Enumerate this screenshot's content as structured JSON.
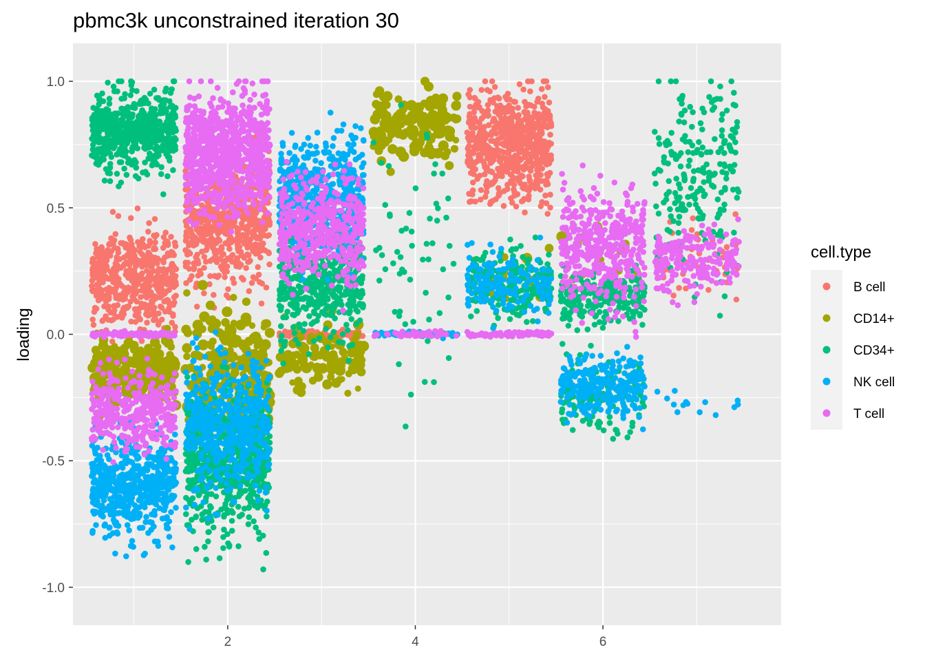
{
  "chart_data": {
    "type": "scatter",
    "title": "pbmc3k unconstrained iteration 30",
    "xlabel": "",
    "ylabel": "loading",
    "xlim": [
      0.35,
      7.9
    ],
    "ylim": [
      -1.15,
      1.15
    ],
    "x_ticks": [
      2,
      4,
      6
    ],
    "x_tick_labels": [
      "2",
      "4",
      "6"
    ],
    "x_minor_ticks": [
      1,
      3,
      5,
      7
    ],
    "y_ticks": [
      -1.0,
      -0.5,
      0.0,
      0.5,
      1.0
    ],
    "y_tick_labels": [
      "-1.0",
      "-0.5",
      "0.0",
      "0.5",
      "1.0"
    ],
    "grid": true,
    "legend": {
      "title": "cell.type",
      "position": "right",
      "entries": [
        "B cell",
        "CD14+",
        "CD34+",
        "NK cell",
        "T cell"
      ]
    },
    "colors": {
      "B cell": "#F8766D",
      "CD14+": "#A3A500",
      "CD34+": "#00BF7D",
      "NK cell": "#00B0F6",
      "T cell": "#E76BF3"
    },
    "jitter_width": 0.45,
    "series": [
      {
        "name": "B cell",
        "clusters": [
          {
            "x": 1,
            "y_center": 0.22,
            "y_spread": 0.1,
            "n": 500
          },
          {
            "x": 2,
            "y_center": 0.45,
            "y_spread": 0.12,
            "n": 700
          },
          {
            "x": 3,
            "y_center": 0.0,
            "y_spread": 0.01,
            "n": 80
          },
          {
            "x": 5,
            "y_center": 0.75,
            "y_spread": 0.11,
            "n": 650
          },
          {
            "x": 7,
            "y_center": 0.3,
            "y_spread": 0.07,
            "n": 50
          }
        ]
      },
      {
        "name": "CD14+",
        "clusters": [
          {
            "x": 1,
            "y_center": -0.15,
            "y_spread": 0.06,
            "n": 260
          },
          {
            "x": 2,
            "y_center": -0.15,
            "y_spread": 0.12,
            "n": 250
          },
          {
            "x": 3,
            "y_center": -0.1,
            "y_spread": 0.07,
            "n": 110
          },
          {
            "x": 4,
            "y_center": 0.83,
            "y_spread": 0.07,
            "n": 160
          },
          {
            "x": 5,
            "y_center": 0.25,
            "y_spread": 0.06,
            "n": 20
          },
          {
            "x": 6,
            "y_center": 0.32,
            "y_spread": 0.05,
            "n": 15
          }
        ]
      },
      {
        "name": "CD34+",
        "clusters": [
          {
            "x": 1,
            "y_center": 0.8,
            "y_spread": 0.08,
            "n": 550
          },
          {
            "x": 2,
            "y_center": -0.5,
            "y_spread": 0.13,
            "n": 650
          },
          {
            "x": 3,
            "y_center": 0.2,
            "y_spread": 0.1,
            "n": 450
          },
          {
            "x": 4,
            "y_center": 0.3,
            "y_spread": 0.25,
            "n": 60
          },
          {
            "x": 5,
            "y_center": 0.2,
            "y_spread": 0.06,
            "n": 250
          },
          {
            "x": 6,
            "y_center": 0.15,
            "y_spread": 0.05,
            "n": 250
          },
          {
            "x": 6,
            "y_center": -0.25,
            "y_spread": 0.08,
            "n": 120
          },
          {
            "x": 7,
            "y_center": 0.65,
            "y_spread": 0.2,
            "n": 220
          }
        ]
      },
      {
        "name": "NK cell",
        "clusters": [
          {
            "x": 1,
            "y_center": -0.6,
            "y_spread": 0.1,
            "n": 550
          },
          {
            "x": 2,
            "y_center": -0.35,
            "y_spread": 0.13,
            "n": 500
          },
          {
            "x": 3,
            "y_center": 0.55,
            "y_spread": 0.11,
            "n": 550
          },
          {
            "x": 4,
            "y_center": 0.0,
            "y_spread": 0.005,
            "n": 60
          },
          {
            "x": 5,
            "y_center": 0.2,
            "y_spread": 0.06,
            "n": 160
          },
          {
            "x": 6,
            "y_center": -0.2,
            "y_spread": 0.06,
            "n": 260
          },
          {
            "x": 7,
            "y_center": -0.27,
            "y_spread": 0.04,
            "n": 14
          }
        ]
      },
      {
        "name": "T cell",
        "clusters": [
          {
            "x": 1,
            "y_center": -0.3,
            "y_spread": 0.08,
            "n": 350
          },
          {
            "x": 1,
            "y_center": 0.0,
            "y_spread": 0.005,
            "n": 120
          },
          {
            "x": 2,
            "y_center": 0.72,
            "y_spread": 0.11,
            "n": 850
          },
          {
            "x": 3,
            "y_center": 0.42,
            "y_spread": 0.1,
            "n": 450
          },
          {
            "x": 4,
            "y_center": 0.0,
            "y_spread": 0.005,
            "n": 40
          },
          {
            "x": 5,
            "y_center": 0.0,
            "y_spread": 0.005,
            "n": 80
          },
          {
            "x": 6,
            "y_center": 0.35,
            "y_spread": 0.12,
            "n": 400
          },
          {
            "x": 7,
            "y_center": 0.3,
            "y_spread": 0.06,
            "n": 200
          }
        ]
      }
    ]
  }
}
